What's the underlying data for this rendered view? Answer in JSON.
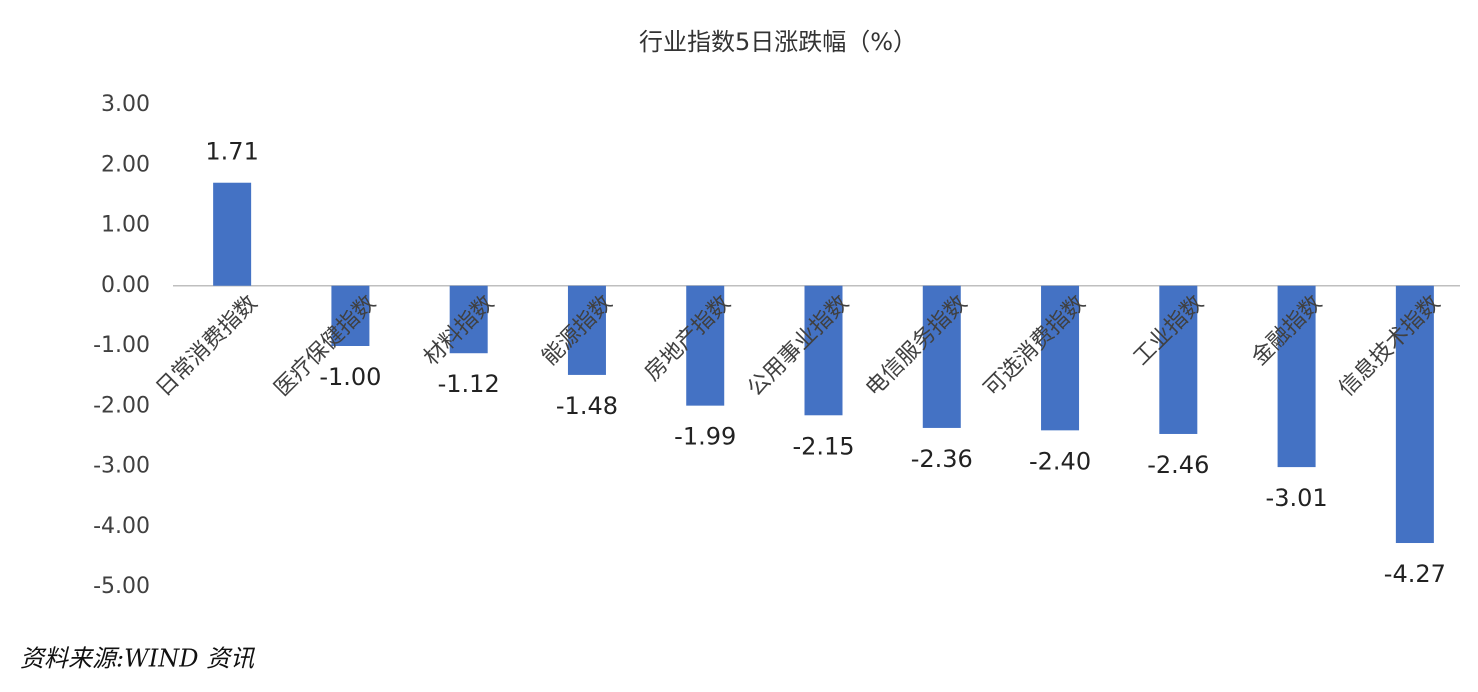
{
  "chart_data": {
    "type": "bar",
    "title": "行业指数5日涨跌幅（%）",
    "categories": [
      "日常消费指数",
      "医疗保健指数",
      "材料指数",
      "能源指数",
      "房地产指数",
      "公用事业指数",
      "电信服务指数",
      "可选消费指数",
      "工业指数",
      "金融指数",
      "信息技术指数"
    ],
    "values": [
      1.71,
      -1.0,
      -1.12,
      -1.48,
      -1.99,
      -2.15,
      -2.36,
      -2.4,
      -2.46,
      -3.01,
      -4.27
    ],
    "value_labels": [
      "1.71",
      "-1.00",
      "-1.12",
      "-1.48",
      "-1.99",
      "-2.15",
      "-2.36",
      "-2.40",
      "-2.46",
      "-3.01",
      "-4.27"
    ],
    "color": "#4472c4",
    "ylim": [
      -5,
      3
    ],
    "yticks": [
      {
        "value": -5,
        "label": "-5.00"
      },
      {
        "value": -4,
        "label": "-4.00"
      },
      {
        "value": -3,
        "label": "-3.00"
      },
      {
        "value": -2,
        "label": "-2.00"
      },
      {
        "value": -1,
        "label": "-1.00"
      },
      {
        "value": 0,
        "label": "0.00"
      },
      {
        "value": 1,
        "label": "1.00"
      },
      {
        "value": 2,
        "label": "2.00"
      },
      {
        "value": 3,
        "label": "3.00"
      }
    ],
    "grid": false,
    "source": "资料来源:WIND 资讯"
  }
}
